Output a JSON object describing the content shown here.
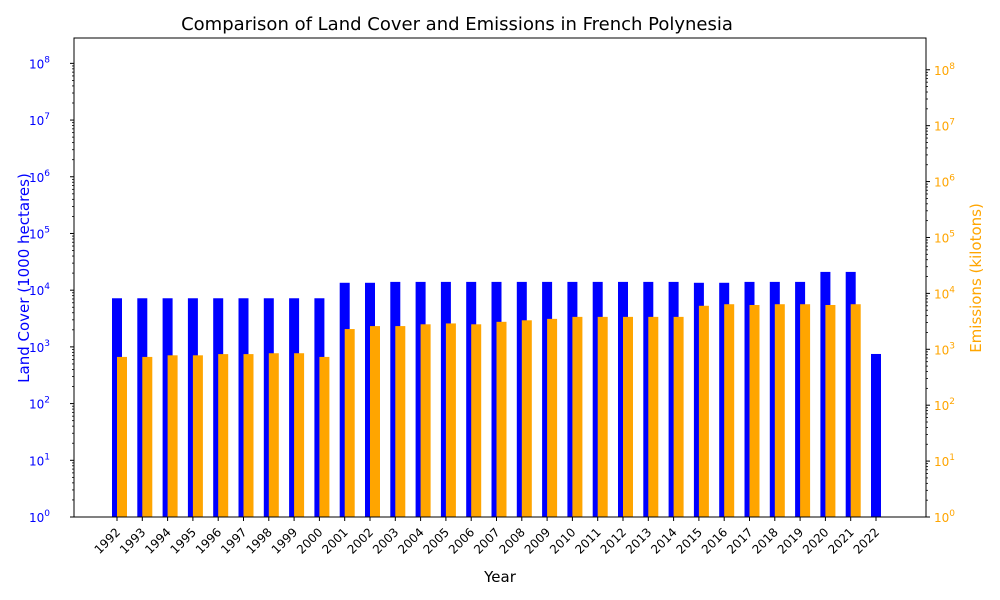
{
  "chart_data": {
    "type": "bar",
    "title": "Comparison of Land Cover and Emissions in French Polynesia",
    "xlabel": "Year",
    "ylabel_left": "Land Cover (1000 hectares)",
    "ylabel_right": "Emissions (kilotons)",
    "scale": "log",
    "ylim_left": [
      1,
      280000000
    ],
    "ylim_right": [
      1,
      370000000
    ],
    "left_ticks": [
      {
        "value": 1,
        "base": "10",
        "exp": "0"
      },
      {
        "value": 10,
        "base": "10",
        "exp": "1"
      },
      {
        "value": 100,
        "base": "10",
        "exp": "2"
      },
      {
        "value": 1000,
        "base": "10",
        "exp": "3"
      },
      {
        "value": 10000,
        "base": "10",
        "exp": "4"
      },
      {
        "value": 100000,
        "base": "10",
        "exp": "5"
      },
      {
        "value": 1000000,
        "base": "10",
        "exp": "6"
      },
      {
        "value": 10000000,
        "base": "10",
        "exp": "7"
      },
      {
        "value": 100000000,
        "base": "10",
        "exp": "8"
      }
    ],
    "right_ticks": [
      {
        "value": 1,
        "base": "10",
        "exp": "0"
      },
      {
        "value": 10,
        "base": "10",
        "exp": "1"
      },
      {
        "value": 100,
        "base": "10",
        "exp": "2"
      },
      {
        "value": 1000,
        "base": "10",
        "exp": "3"
      },
      {
        "value": 10000,
        "base": "10",
        "exp": "4"
      },
      {
        "value": 100000,
        "base": "10",
        "exp": "5"
      },
      {
        "value": 1000000,
        "base": "10",
        "exp": "6"
      },
      {
        "value": 10000000,
        "base": "10",
        "exp": "7"
      },
      {
        "value": 100000000,
        "base": "10",
        "exp": "8"
      }
    ],
    "categories": [
      "1992",
      "1993",
      "1994",
      "1995",
      "1996",
      "1997",
      "1998",
      "1999",
      "2000",
      "2001",
      "2002",
      "2003",
      "2004",
      "2005",
      "2006",
      "2007",
      "2008",
      "2009",
      "2010",
      "2011",
      "2012",
      "2013",
      "2014",
      "2015",
      "2016",
      "2017",
      "2018",
      "2019",
      "2020",
      "2021",
      "2022"
    ],
    "series": [
      {
        "name": "",
        "axis": "left",
        "color": "#0000ff",
        "values": [
          7200,
          7200,
          7200,
          7200,
          7200,
          7200,
          7200,
          7200,
          7200,
          13500,
          13500,
          14000,
          14000,
          14000,
          14000,
          14000,
          14000,
          14000,
          14000,
          14000,
          14000,
          14000,
          14000,
          13500,
          13500,
          14000,
          14000,
          14000,
          21000,
          21000,
          750
        ]
      },
      {
        "name": "",
        "axis": "right",
        "color": "#ffa500",
        "values": [
          730,
          730,
          780,
          780,
          820,
          820,
          850,
          850,
          730,
          2300,
          2600,
          2600,
          2800,
          2900,
          2800,
          3100,
          3300,
          3500,
          3800,
          3800,
          3800,
          3800,
          3800,
          6000,
          6400,
          6200,
          6400,
          6400,
          6200,
          6400,
          null
        ]
      }
    ],
    "grid": false,
    "colors": {
      "left_axis": "#0000ff",
      "right_axis": "#ffa500",
      "frame": "#000000"
    }
  }
}
